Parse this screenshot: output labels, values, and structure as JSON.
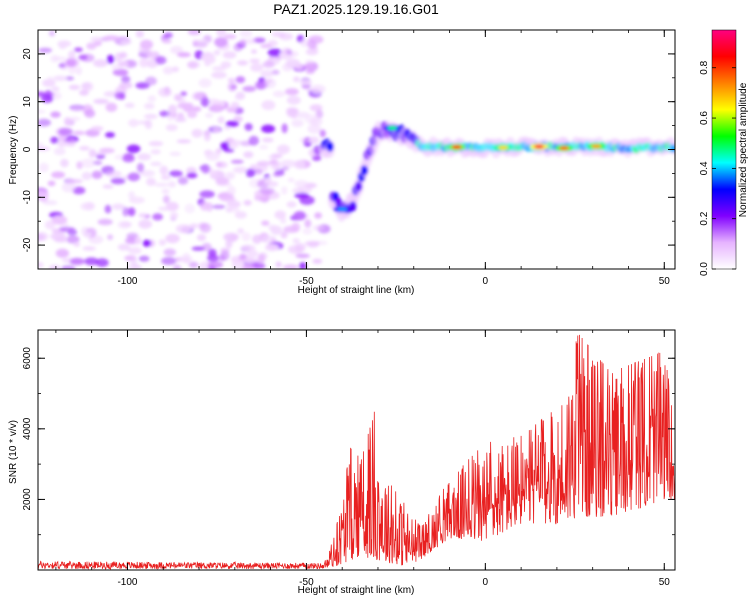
{
  "figure_title": "PAZ1.2025.129.19.16.G01",
  "colorbar": {
    "label": "Normalized spectral amplitude",
    "ticks": [
      "0.0",
      "0.2",
      "0.4",
      "0.6",
      "0.8"
    ],
    "colors": [
      "#ffffff",
      "#e6b3ff",
      "#8000ff",
      "#0000ff",
      "#00ffff",
      "#00ff00",
      "#ffff00",
      "#ff8000",
      "#ff0000",
      "#ff0080"
    ]
  },
  "chart_data": [
    {
      "type": "heatmap",
      "title": "",
      "xlabel": "Height of straight line (km)",
      "ylabel": "Frequency (Hz)",
      "xlim": [
        -125,
        53
      ],
      "ylim": [
        -25,
        25
      ],
      "x_ticks": [
        "-100",
        "-50",
        "0",
        "50"
      ],
      "y_ticks": [
        "-20",
        "-10",
        "0",
        "10",
        "20"
      ],
      "value_range": [
        0,
        1
      ],
      "colormap": "rainbow (white-violet-blue-cyan-green-yellow-red-magenta)",
      "regions": [
        {
          "x": [
            -125,
            -45
          ],
          "freq_hz": [
            -25,
            25
          ],
          "amplitude": "low noise (~0.05-0.15)"
        },
        {
          "x": [
            -45,
            -20
          ],
          "freq_hz": [
            -13,
            5
          ],
          "amplitude": "moderate (~0.2)"
        },
        {
          "x": [
            -20,
            53
          ],
          "freq_hz": [
            -1,
            1
          ],
          "amplitude": "strong carrier (0.4-1.0)"
        }
      ],
      "ridge": [
        {
          "x": -43,
          "f": -9.5
        },
        {
          "x": -40,
          "f": -13
        },
        {
          "x": -37,
          "f": -11
        },
        {
          "x": -34,
          "f": -4
        },
        {
          "x": -30,
          "f": 4
        },
        {
          "x": -27,
          "f": 4
        },
        {
          "x": -22,
          "f": 3
        },
        {
          "x": -18,
          "f": 0.6
        },
        {
          "x": -10,
          "f": 0.5
        },
        {
          "x": 0,
          "f": 0.3
        },
        {
          "x": 10,
          "f": 0.6
        },
        {
          "x": 20,
          "f": 0.5
        },
        {
          "x": 30,
          "f": 0.6
        },
        {
          "x": 40,
          "f": 0.3
        },
        {
          "x": 50,
          "f": 0.5
        }
      ],
      "hotspots": [
        {
          "x": 15,
          "f": 0.6,
          "amplitude": 0.95
        },
        {
          "x": -8,
          "f": 0.5,
          "amplitude": 0.85
        },
        {
          "x": 22,
          "f": 0.3,
          "amplitude": 0.8
        },
        {
          "x": 31,
          "f": 0.7,
          "amplitude": 0.75
        },
        {
          "x": 5,
          "f": 0.4,
          "amplitude": 0.7
        },
        {
          "x": -26,
          "f": 4.5,
          "amplitude": 0.5
        },
        {
          "x": -40,
          "f": -12.5,
          "amplitude": 0.4
        }
      ]
    },
    {
      "type": "line",
      "title": "",
      "xlabel": "Height of straight line (km)",
      "ylabel": "SNR (10 * v/v)",
      "xlim": [
        -125,
        53
      ],
      "ylim": [
        0,
        6800
      ],
      "x_ticks": [
        "-100",
        "-50",
        "0",
        "50"
      ],
      "y_ticks": [
        "2000",
        "4000",
        "6000"
      ],
      "color": "#e82020",
      "series": [
        {
          "envelope": [
            {
              "x": -125,
              "min": 30,
              "max": 250
            },
            {
              "x": -45,
              "min": 30,
              "max": 200
            },
            {
              "x": -42,
              "min": 100,
              "max": 1000
            },
            {
              "x": -37,
              "min": 300,
              "max": 3800
            },
            {
              "x": -35,
              "min": 400,
              "max": 3000
            },
            {
              "x": -31,
              "min": 300,
              "max": 4500
            },
            {
              "x": -27,
              "min": 200,
              "max": 2500
            },
            {
              "x": -22,
              "min": 100,
              "max": 1800
            },
            {
              "x": -18,
              "min": 300,
              "max": 1200
            },
            {
              "x": -10,
              "min": 900,
              "max": 2600
            },
            {
              "x": 0,
              "min": 800,
              "max": 3600
            },
            {
              "x": 10,
              "min": 1300,
              "max": 3800
            },
            {
              "x": 20,
              "min": 1300,
              "max": 4600
            },
            {
              "x": 26,
              "min": 1500,
              "max": 6700
            },
            {
              "x": 35,
              "min": 1500,
              "max": 5600
            },
            {
              "x": 45,
              "min": 1800,
              "max": 6000
            },
            {
              "x": 50,
              "min": 2000,
              "max": 6200
            },
            {
              "x": 53,
              "min": 2000,
              "max": 4200
            }
          ]
        }
      ]
    }
  ]
}
